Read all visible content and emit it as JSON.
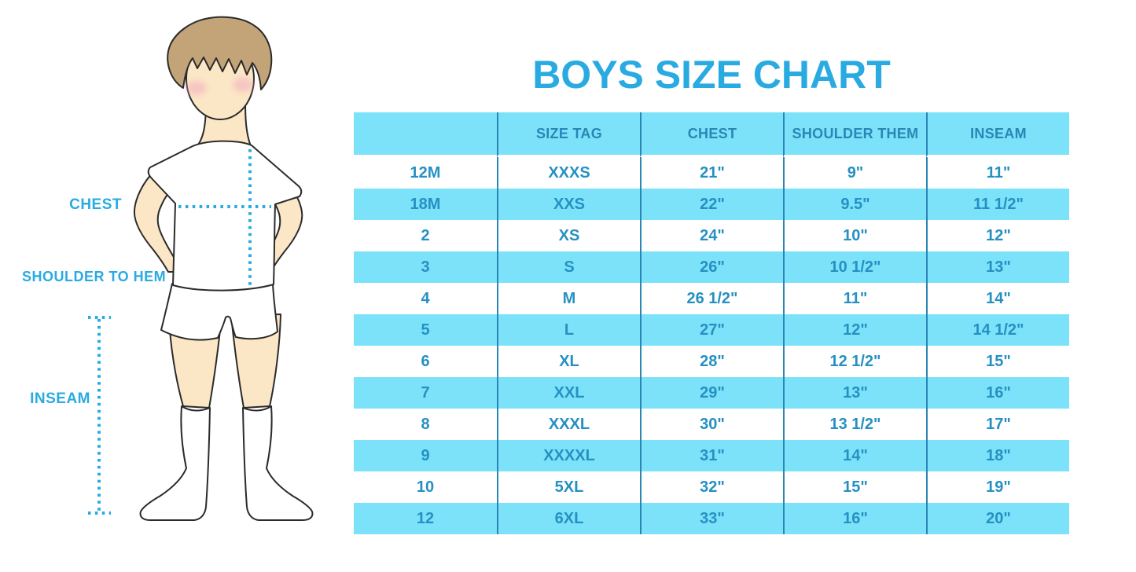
{
  "title": "BOYS SIZE CHART",
  "figure": {
    "illustration": "boy-in-tshirt-shorts-and-knee-socks",
    "labels": {
      "chest": "CHEST",
      "shoulder_to_hem": "SHOULDER TO HEM",
      "inseam": "INSEAM"
    }
  },
  "chart_data": {
    "type": "table",
    "title": "BOYS SIZE CHART",
    "columns": [
      "",
      "SIZE TAG",
      "CHEST",
      "SHOULDER THEM",
      "INSEAM"
    ],
    "rows": [
      [
        "12M",
        "XXXS",
        "21\"",
        "9\"",
        "11\""
      ],
      [
        "18M",
        "XXS",
        "22\"",
        "9.5\"",
        "11 1/2\""
      ],
      [
        "2",
        "XS",
        "24\"",
        "10\"",
        "12\""
      ],
      [
        "3",
        "S",
        "26\"",
        "10 1/2\"",
        "13\""
      ],
      [
        "4",
        "M",
        "26 1/2\"",
        "11\"",
        "14\""
      ],
      [
        "5",
        "L",
        "27\"",
        "12\"",
        "14 1/2\""
      ],
      [
        "6",
        "XL",
        "28\"",
        "12 1/2\"",
        "15\""
      ],
      [
        "7",
        "XXL",
        "29\"",
        "13\"",
        "16\""
      ],
      [
        "8",
        "XXXL",
        "30\"",
        "13 1/2\"",
        "17\""
      ],
      [
        "9",
        "XXXXL",
        "31\"",
        "14\"",
        "18\""
      ],
      [
        "10",
        "5XL",
        "32\"",
        "15\"",
        "19\""
      ],
      [
        "12",
        "6XL",
        "33\"",
        "16\"",
        "20\""
      ]
    ],
    "layout": {
      "alternating_row_fill": "first row white, then alternating cyan/white",
      "gridlines": "vertical column dividers only"
    }
  },
  "colors": {
    "accent_cyan": "#29ABE2",
    "row_cyan": "#7BE2FA",
    "divider_blue": "#2A86B5",
    "table_text": "#2690C2",
    "outline": "#2b2b2b",
    "skin": "#FBE7C6",
    "hair": "#C3A478",
    "blush": "#F2AEC0"
  }
}
